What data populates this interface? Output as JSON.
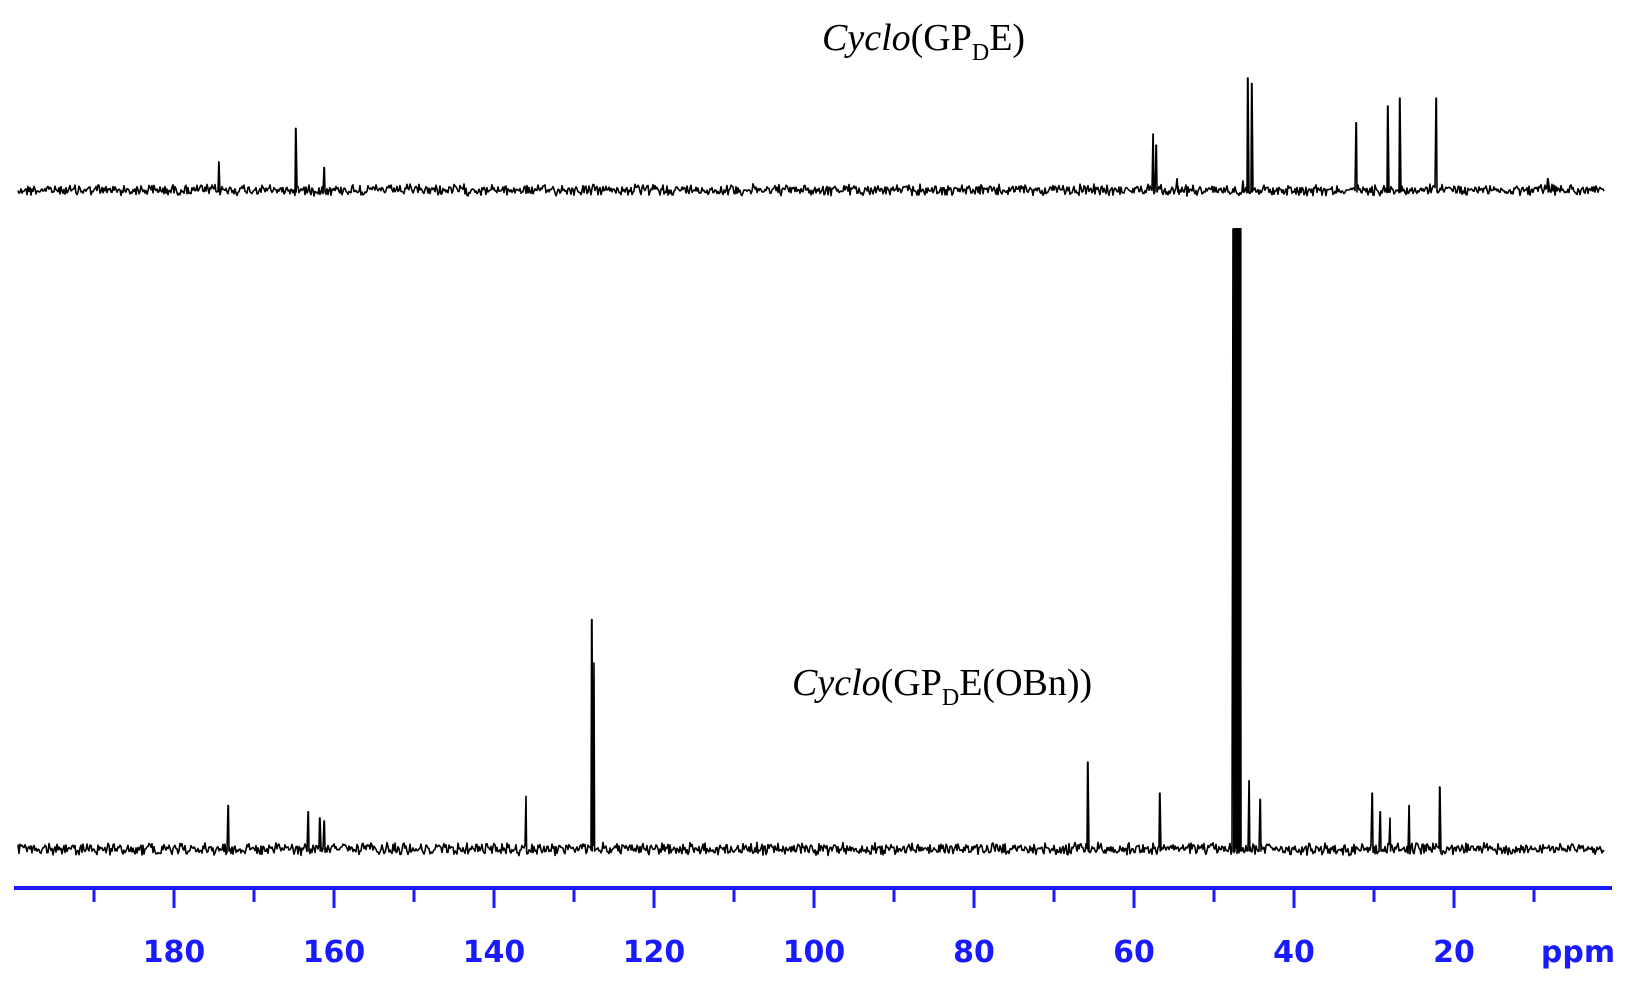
{
  "chart_data": {
    "type": "line",
    "title": "",
    "xlabel": "",
    "x_unit": "ppm",
    "ylabel": "",
    "xlim": [
      200,
      0
    ],
    "x_reversed": true,
    "grid": false,
    "legend": "none",
    "axis_color": "#1a1aff",
    "trace_color": "#000000",
    "x_ticks": [
      180,
      160,
      140,
      120,
      100,
      80,
      60,
      40,
      20
    ],
    "x_minor_tick_step": 10,
    "spectra": [
      {
        "name_parts": {
          "italic": "Cyclo",
          "pre": "(GP",
          "sub": "D",
          "post": "E)"
        },
        "peaks": [
          {
            "ppm": 174.4,
            "intensity": 0.25
          },
          {
            "ppm": 164.8,
            "intensity": 0.55
          },
          {
            "ppm": 161.2,
            "intensity": 0.2
          },
          {
            "ppm": 57.6,
            "intensity": 0.5
          },
          {
            "ppm": 57.2,
            "intensity": 0.4
          },
          {
            "ppm": 54.6,
            "intensity": 0.1
          },
          {
            "ppm": 46.4,
            "intensity": 0.08
          },
          {
            "ppm": 45.8,
            "intensity": 1.0
          },
          {
            "ppm": 45.3,
            "intensity": 0.95
          },
          {
            "ppm": 32.2,
            "intensity": 0.6
          },
          {
            "ppm": 28.3,
            "intensity": 0.75
          },
          {
            "ppm": 26.8,
            "intensity": 0.82
          },
          {
            "ppm": 22.2,
            "intensity": 0.82
          },
          {
            "ppm": 8.3,
            "intensity": 0.1
          }
        ]
      },
      {
        "name_parts": {
          "italic": "Cyclo",
          "pre": "(GP",
          "sub": "D",
          "post": "E(OBn))"
        },
        "peaks": [
          {
            "ppm": 173.2,
            "intensity": 0.07
          },
          {
            "ppm": 163.2,
            "intensity": 0.06
          },
          {
            "ppm": 161.8,
            "intensity": 0.05
          },
          {
            "ppm": 161.2,
            "intensity": 0.045
          },
          {
            "ppm": 136.0,
            "intensity": 0.085
          },
          {
            "ppm": 127.8,
            "intensity": 0.37
          },
          {
            "ppm": 127.5,
            "intensity": 0.3
          },
          {
            "ppm": 65.8,
            "intensity": 0.14
          },
          {
            "ppm": 56.8,
            "intensity": 0.09
          },
          {
            "ppm": 47.6,
            "intensity": 1.0
          },
          {
            "ppm": 47.2,
            "intensity": 1.0
          },
          {
            "ppm": 46.8,
            "intensity": 1.0
          },
          {
            "ppm": 45.6,
            "intensity": 0.11
          },
          {
            "ppm": 44.2,
            "intensity": 0.08
          },
          {
            "ppm": 30.2,
            "intensity": 0.09
          },
          {
            "ppm": 29.2,
            "intensity": 0.06
          },
          {
            "ppm": 28.0,
            "intensity": 0.05
          },
          {
            "ppm": 25.6,
            "intensity": 0.07
          },
          {
            "ppm": 21.8,
            "intensity": 0.1
          }
        ]
      }
    ]
  }
}
